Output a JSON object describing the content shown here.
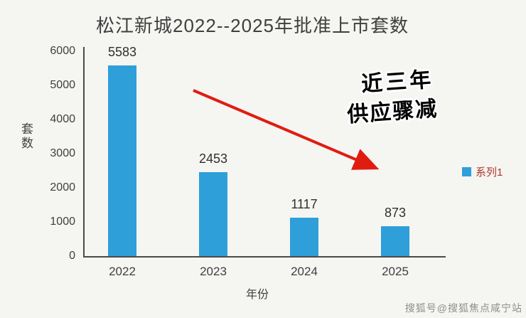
{
  "title": "松江新城2022--2025年批准上市套数",
  "chart_data": {
    "type": "bar",
    "categories": [
      "2022",
      "2023",
      "2024",
      "2025"
    ],
    "values": [
      5583,
      2453,
      1117,
      873
    ],
    "value_labels": [
      "5583",
      "2453",
      "1117",
      "873"
    ],
    "title": "松江新城2022--2025年批准上市套数",
    "xlabel": "年份",
    "ylabel": "套数",
    "ylim": [
      0,
      6000
    ],
    "ytick_labels": [
      "6000",
      "5000",
      "4000",
      "3000",
      "2000",
      "1000",
      "0"
    ],
    "grid": false,
    "bar_color": "#2e9fd9",
    "legend_position": "right",
    "legend": [
      {
        "label": "系列1",
        "color": "#2e9fd9"
      }
    ]
  },
  "annotation": {
    "line1": "近三年",
    "line2": "供应骤减",
    "arrow_color": "#e01c10"
  },
  "watermark": "搜狐号@搜狐焦点咸宁站"
}
